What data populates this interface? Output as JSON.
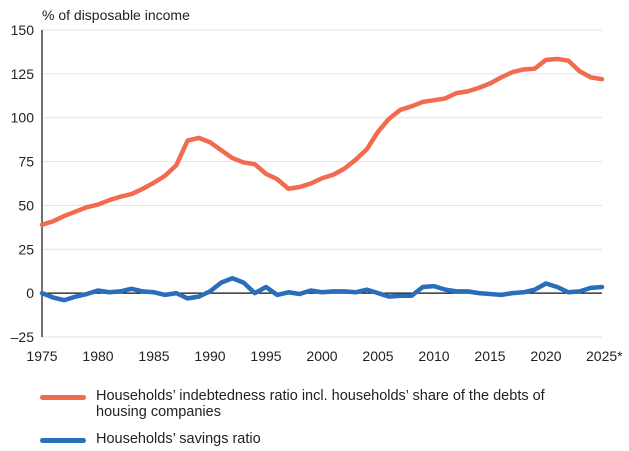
{
  "chart_data": {
    "type": "line",
    "ylabel": "% of disposable income",
    "x": [
      1975,
      1976,
      1977,
      1978,
      1979,
      1980,
      1981,
      1982,
      1983,
      1984,
      1985,
      1986,
      1987,
      1988,
      1989,
      1990,
      1991,
      1992,
      1993,
      1994,
      1995,
      1996,
      1997,
      1998,
      1999,
      2000,
      2001,
      2002,
      2003,
      2004,
      2005,
      2006,
      2007,
      2008,
      2009,
      2010,
      2011,
      2012,
      2013,
      2014,
      2015,
      2016,
      2017,
      2018,
      2019,
      2020,
      2021,
      2022,
      2023,
      2024,
      2025
    ],
    "series": [
      {
        "name": "Households’ indebtedness ratio incl. households’ share of the debts of housing companies",
        "color": "#f26b50",
        "values": [
          39,
          41,
          44,
          46.5,
          49,
          50.5,
          53,
          55,
          56.5,
          59.5,
          63,
          67,
          73,
          87,
          88.5,
          86,
          81.5,
          77,
          74.5,
          73.5,
          68,
          65,
          59.5,
          60.5,
          62.5,
          65.5,
          67.5,
          71,
          76,
          82,
          92,
          99.5,
          104.5,
          106.5,
          109,
          110,
          111,
          114,
          115,
          117,
          119.5,
          123,
          126,
          127.5,
          128,
          133,
          133.5,
          132.5,
          126.5,
          123,
          122
        ]
      },
      {
        "name": "Households’ savings ratio",
        "color": "#2a6ebb",
        "values": [
          0,
          -2.5,
          -4,
          -2,
          -0.5,
          1.5,
          0.5,
          1,
          2.5,
          1,
          0.5,
          -1,
          0,
          -3,
          -2,
          1,
          6,
          8.5,
          6,
          0,
          3.5,
          -1,
          0.5,
          -0.5,
          1.5,
          0.5,
          1,
          1,
          0.5,
          2,
          0,
          -2,
          -1.5,
          -1.5,
          3.5,
          4,
          2,
          1,
          1,
          0,
          -0.5,
          -1,
          0,
          0.5,
          2,
          5.5,
          3.5,
          0.5,
          1,
          3,
          3.5
        ]
      }
    ],
    "xlim": [
      1975,
      2025
    ],
    "xticks": [
      1975,
      1980,
      1985,
      1990,
      1995,
      2000,
      2005,
      2010,
      2015,
      2020,
      {
        "value": 2025,
        "label": "2025*"
      }
    ],
    "ylim": [
      -25,
      150
    ],
    "yticks": [
      {
        "value": -25,
        "label": "–25"
      },
      0,
      25,
      50,
      75,
      100,
      125,
      150
    ],
    "grid": true
  }
}
